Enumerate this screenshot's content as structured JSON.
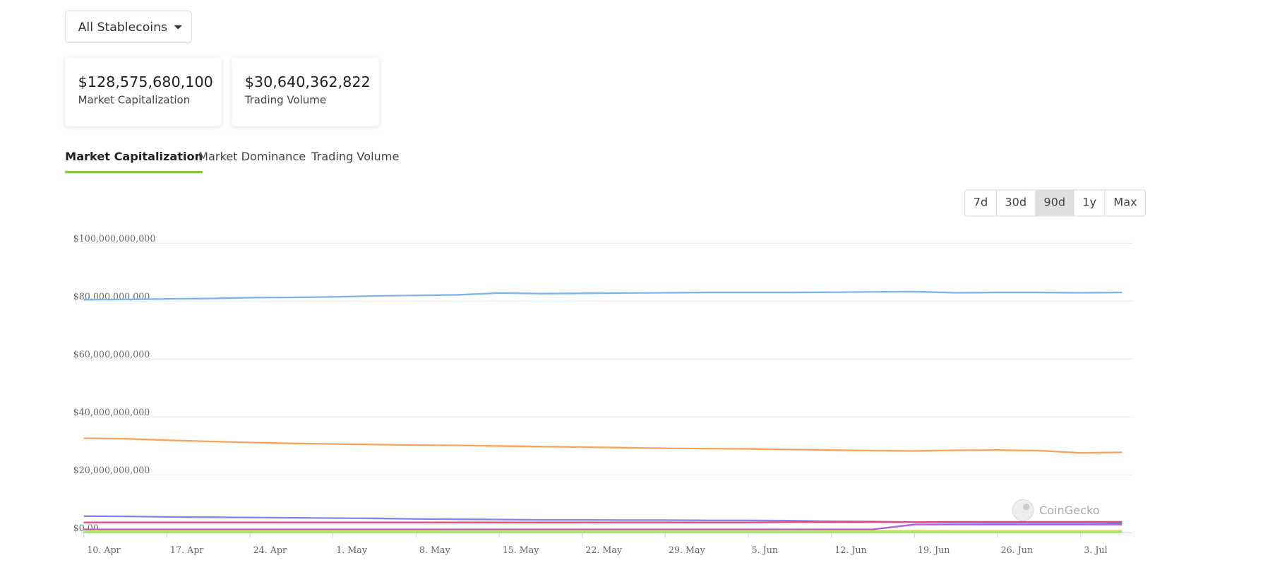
{
  "ui": {
    "dropdown": "All Stablecoins",
    "stats": [
      {
        "value": "$128,575,680,100",
        "label": "Market Capitalization"
      },
      {
        "value": "$30,640,362,822",
        "label": "Trading Volume"
      }
    ],
    "tabs": [
      "Market Capitalization",
      "Market Dominance",
      "Trading Volume"
    ],
    "active_tab": 0,
    "ranges": [
      "7d",
      "30d",
      "90d",
      "1y",
      "Max"
    ],
    "active_range": 2,
    "watermark": "CoinGecko"
  },
  "chart_data": {
    "type": "line",
    "categories": [
      "10. Apr",
      null,
      "17. Apr",
      null,
      "24. Apr",
      null,
      "1. May",
      null,
      "8. May",
      null,
      "15. May",
      null,
      "22. May",
      null,
      "29. May",
      null,
      "5. Jun",
      null,
      "12. Jun",
      null,
      "19. Jun",
      null,
      "26. Jun",
      null,
      "3. Jul",
      null
    ],
    "ylim": [
      0,
      100000000000
    ],
    "yticks": [
      {
        "value": 0,
        "label": "$0.00"
      },
      {
        "value": 20000000000,
        "label": "$20,000,000,000"
      },
      {
        "value": 40000000000,
        "label": "$40,000,000,000"
      },
      {
        "value": 60000000000,
        "label": "$60,000,000,000"
      },
      {
        "value": 80000000000,
        "label": "$80,000,000,000"
      },
      {
        "value": 100000000000,
        "label": "$100,000,000,000"
      }
    ],
    "grid": true,
    "series": [
      {
        "color": "#7cb5ec",
        "values": [
          80500000000,
          80600000000,
          80800000000,
          80900000000,
          81200000000,
          81300000000,
          81500000000,
          81800000000,
          82000000000,
          82200000000,
          82800000000,
          82600000000,
          82700000000,
          82800000000,
          82900000000,
          83000000000,
          83000000000,
          83000000000,
          83100000000,
          83200000000,
          83300000000,
          82900000000,
          83000000000,
          83000000000,
          82900000000,
          83000000000
        ]
      },
      {
        "color": "#f7a35c",
        "values": [
          32700000000,
          32500000000,
          32000000000,
          31600000000,
          31200000000,
          30900000000,
          30700000000,
          30500000000,
          30300000000,
          30200000000,
          30000000000,
          29800000000,
          29600000000,
          29400000000,
          29200000000,
          29100000000,
          29000000000,
          28800000000,
          28600000000,
          28400000000,
          28300000000,
          28500000000,
          28600000000,
          28400000000,
          27600000000,
          27800000000
        ]
      },
      {
        "color": "#8085e9",
        "values": [
          5800000000,
          5700000000,
          5500000000,
          5400000000,
          5300000000,
          5200000000,
          5100000000,
          5000000000,
          4800000000,
          4700000000,
          4600000000,
          4500000000,
          4500000000,
          4400000000,
          4400000000,
          4300000000,
          4300000000,
          4200000000,
          4000000000,
          3900000000,
          3700000000,
          3600000000,
          3500000000,
          3500000000,
          3500000000,
          3400000000
        ]
      },
      {
        "color": "#e4477e",
        "values": [
          3600000000,
          3600000000,
          3600000000,
          3600000000,
          3600000000,
          3600000000,
          3600000000,
          3600000000,
          3600000000,
          3600000000,
          3600000000,
          3600000000,
          3600000000,
          3600000000,
          3600000000,
          3600000000,
          3600000000,
          3700000000,
          3700000000,
          3700000000,
          3700000000,
          3800000000,
          3800000000,
          3800000000,
          3800000000,
          3800000000
        ]
      },
      {
        "color": "#b05de0",
        "values": [
          1200000000,
          1200000000,
          1200000000,
          1200000000,
          1200000000,
          1200000000,
          1200000000,
          1200000000,
          1200000000,
          1200000000,
          1200000000,
          1200000000,
          1200000000,
          1200000000,
          1200000000,
          1200000000,
          1200000000,
          1200000000,
          1200000000,
          1200000000,
          2900000000,
          2900000000,
          2900000000,
          2900000000,
          2900000000,
          2900000000
        ]
      },
      {
        "color": "#e4d354",
        "values": [
          700000000,
          700000000,
          700000000,
          700000000,
          700000000,
          700000000,
          700000000,
          700000000,
          700000000,
          700000000,
          700000000,
          700000000,
          700000000,
          700000000,
          700000000,
          700000000,
          700000000,
          700000000,
          700000000,
          700000000,
          700000000,
          700000000,
          700000000,
          700000000,
          700000000,
          700000000
        ]
      },
      {
        "color": "#90ed7d",
        "values": [
          200000000,
          200000000,
          200000000,
          200000000,
          200000000,
          200000000,
          200000000,
          200000000,
          200000000,
          200000000,
          200000000,
          200000000,
          200000000,
          200000000,
          200000000,
          200000000,
          200000000,
          200000000,
          200000000,
          200000000,
          200000000,
          200000000,
          200000000,
          200000000,
          200000000,
          200000000
        ]
      }
    ]
  }
}
